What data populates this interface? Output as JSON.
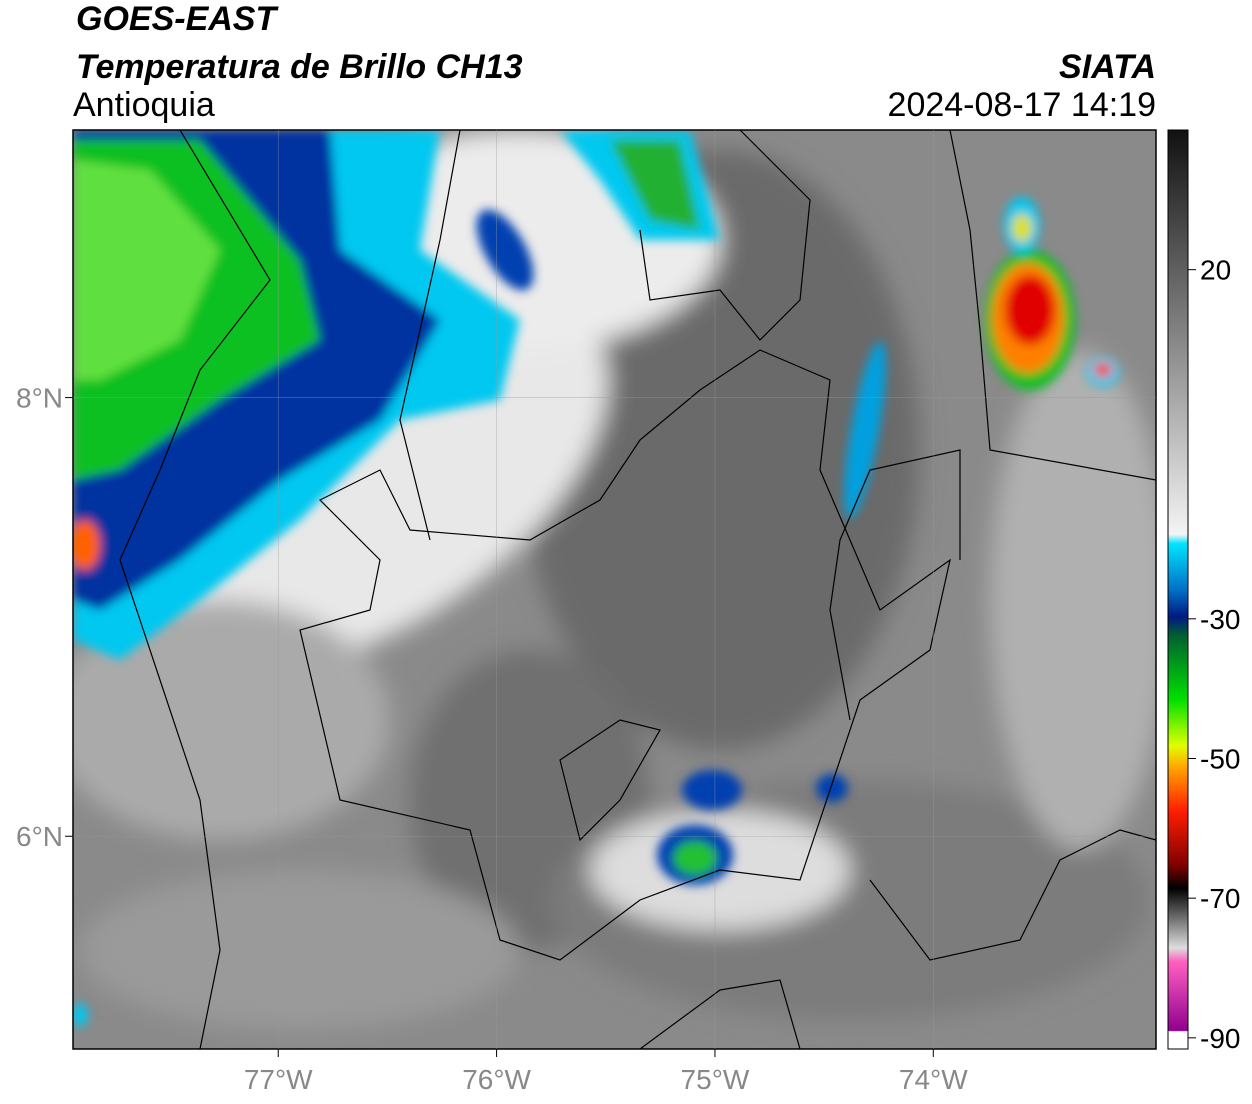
{
  "header": {
    "title": "GOES-EAST",
    "subtitle": "Temperatura de Brillo CH13",
    "region": "Antioquia",
    "source": "SIATA",
    "datetime": "2024-08-17 14:19"
  },
  "map": {
    "xlim": [
      -77.94,
      -72.98
    ],
    "ylim": [
      5.03,
      9.22
    ],
    "lon_ticks": [
      {
        "value": -77,
        "label": "77°W"
      },
      {
        "value": -76,
        "label": "76°W"
      },
      {
        "value": -75,
        "label": "75°W"
      },
      {
        "value": -74,
        "label": "74°W"
      }
    ],
    "lat_ticks": [
      {
        "value": 8,
        "label": "8°N"
      },
      {
        "value": 6,
        "label": "6°N"
      }
    ]
  },
  "colorbar": {
    "lim": [
      -91.6,
      40
    ],
    "ticks": [
      20,
      -30,
      -50,
      -70,
      -90
    ]
  }
}
